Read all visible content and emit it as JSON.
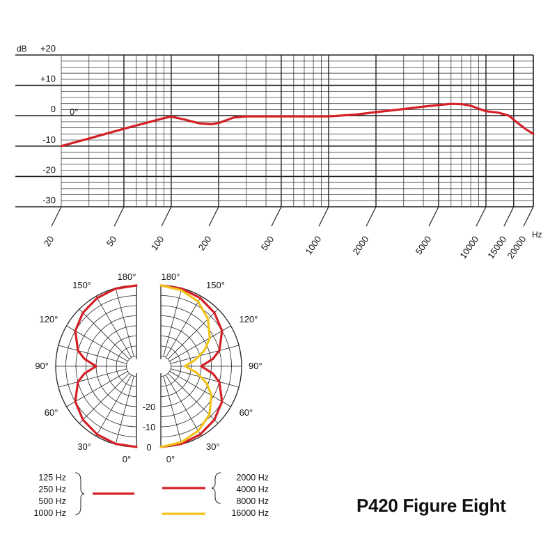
{
  "title": "P420 Figure Eight",
  "chart_data": [
    {
      "type": "line",
      "title": "",
      "ylabel": "dB",
      "xlabel": "Hz",
      "x_scale": "log",
      "xlim": [
        20,
        20000
      ],
      "ylim": [
        -30,
        20
      ],
      "grid": true,
      "x_ticks": [
        20,
        50,
        100,
        200,
        500,
        1000,
        2000,
        5000,
        10000,
        15000,
        20000
      ],
      "x_tick_labels": [
        "20",
        "50",
        "100",
        "200",
        "500",
        "1000",
        "2000",
        "5000",
        "10000",
        "15000",
        "20000"
      ],
      "y_ticks": [
        20,
        10,
        0,
        -10,
        -20,
        -30
      ],
      "y_tick_labels": [
        "+20",
        "+10",
        "0",
        "-10",
        "-20",
        "-30"
      ],
      "annotation": "0°",
      "color": "#d42027",
      "series": [
        {
          "x": [
            20,
            30,
            40,
            50,
            70,
            90,
            100,
            120,
            150,
            180,
            200,
            250,
            300,
            400,
            500,
            700,
            1000,
            1500,
            2000,
            3000,
            4000,
            5000,
            6000,
            7000,
            8000,
            9000,
            10000,
            12000,
            14000,
            16000,
            18000,
            20000
          ],
          "y": [
            -10,
            -7.5,
            -5.7,
            -4.3,
            -2.3,
            -0.8,
            -0.3,
            -1.2,
            -2.5,
            -2.8,
            -2.4,
            -0.6,
            -0.2,
            -0.2,
            -0.2,
            -0.2,
            -0.2,
            0.4,
            1.2,
            2.2,
            3.0,
            3.5,
            3.9,
            3.8,
            3.3,
            2.3,
            1.5,
            1.0,
            0,
            -2.5,
            -4.5,
            -6
          ]
        }
      ]
    },
    {
      "type": "polar",
      "ylabel": "",
      "rlim": [
        -40,
        0
      ],
      "r_ticks": [
        -20,
        -10,
        0
      ],
      "r_tick_labels": [
        "-20",
        "-10",
        "0"
      ],
      "angle_ticks": [
        0,
        30,
        60,
        90,
        120,
        150,
        180
      ],
      "angle_tick_labels": [
        "0°",
        "30°",
        "60°",
        "90°",
        "120°",
        "150°",
        "180°"
      ],
      "series": [
        {
          "side": "left",
          "color": "#d42027",
          "legend": [
            "125 Hz",
            "250 Hz",
            "500 Hz",
            "1000 Hz"
          ],
          "angle": [
            0,
            15,
            30,
            45,
            60,
            75,
            82,
            90,
            98,
            105,
            120,
            135,
            150,
            165,
            180
          ],
          "db": [
            0,
            -0.2,
            -1,
            -2.5,
            -5,
            -10,
            -14,
            -20,
            -14,
            -10,
            -5,
            -2.5,
            -1,
            -0.2,
            0
          ]
        },
        {
          "side": "right",
          "color": "#d42027",
          "legend": [
            "2000 Hz",
            "4000 Hz",
            "8000 Hz"
          ],
          "angle": [
            0,
            15,
            30,
            45,
            60,
            75,
            82,
            90,
            98,
            105,
            120,
            135,
            150,
            165,
            180
          ],
          "db": [
            0,
            -0.2,
            -1,
            -2.5,
            -5,
            -10,
            -14,
            -20,
            -14,
            -10,
            -5,
            -2.5,
            -1,
            -0.2,
            0
          ]
        },
        {
          "side": "right",
          "color": "#f2c318",
          "legend": [
            "16000 Hz"
          ],
          "angle": [
            0,
            15,
            30,
            45,
            60,
            70,
            80,
            90,
            100,
            110,
            120,
            135,
            150,
            165,
            180
          ],
          "db": [
            0,
            -1,
            -3,
            -6,
            -11,
            -16,
            -22,
            -28,
            -23,
            -17,
            -12,
            -7,
            -3,
            -1,
            0
          ]
        }
      ]
    }
  ]
}
